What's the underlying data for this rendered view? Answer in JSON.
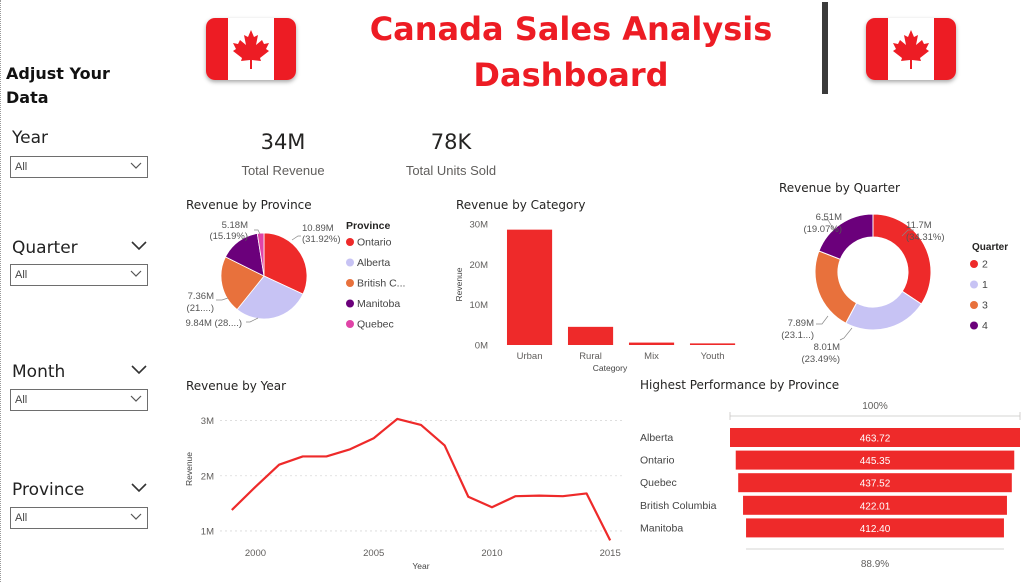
{
  "header": {
    "title": "Canada Sales Analysis Dashboard",
    "flag_colors": {
      "red": "#ed1c24",
      "white": "#ffffff"
    }
  },
  "sidebar": {
    "heading": "Adjust Your Data",
    "filters": [
      {
        "label": "Year",
        "value": "All"
      },
      {
        "label": "Quarter",
        "value": "All"
      },
      {
        "label": "Month",
        "value": "All"
      },
      {
        "label": "Province",
        "value": "All"
      }
    ]
  },
  "kpis": [
    {
      "value": "34M",
      "label": "Total Revenue"
    },
    {
      "value": "78K",
      "label": "Total Units Sold"
    }
  ],
  "colors": {
    "red": "#ee2a2a",
    "lavender": "#c7c3f4",
    "orange": "#e8713c",
    "purple": "#6b007b",
    "pink": "#e044a7"
  },
  "chart_data": [
    {
      "type": "pie",
      "title": "Revenue by Province",
      "legend_title": "Province",
      "legend_position": "right",
      "categories": [
        "Ontario",
        "Alberta",
        "British C...",
        "Manitoba",
        "Quebec"
      ],
      "values": [
        10.89,
        9.84,
        7.36,
        5.18,
        0.85
      ],
      "percent_labels": [
        "(31.92%)",
        "(28....)",
        "(21....)",
        "(15.19%)",
        ""
      ],
      "value_labels": [
        "10.89M",
        "9.84M",
        "7.36M",
        "5.18M",
        ""
      ]
    },
    {
      "type": "bar",
      "title": "Revenue by Category",
      "xlabel": "Category",
      "ylabel": "Revenue",
      "categories": [
        "Urban",
        "Rural",
        "Mix",
        "Youth"
      ],
      "values": [
        28.6,
        4.5,
        0.6,
        0.4
      ],
      "ylim": [
        0,
        30
      ],
      "yticks": [
        "0M",
        "10M",
        "20M",
        "30M"
      ]
    },
    {
      "type": "pie",
      "title": "Revenue by Quarter",
      "subtype": "donut",
      "legend_title": "Quarter",
      "legend_position": "right",
      "categories": [
        "2",
        "1",
        "3",
        "4"
      ],
      "values": [
        11.7,
        8.01,
        7.89,
        6.51
      ],
      "value_labels": [
        "11.7M",
        "8.01M",
        "7.89M",
        "6.51M"
      ],
      "percent_labels": [
        "(34.31%)",
        "(23.49%)",
        "(23.1...)",
        "(19.07%)"
      ]
    },
    {
      "type": "line",
      "title": "Revenue by Year",
      "xlabel": "Year",
      "ylabel": "Revenue",
      "x": [
        1999,
        2000,
        2001,
        2002,
        2003,
        2004,
        2005,
        2006,
        2007,
        2008,
        2009,
        2010,
        2011,
        2012,
        2013,
        2014,
        2015
      ],
      "y": [
        1.38,
        1.8,
        2.2,
        2.35,
        2.35,
        2.48,
        2.68,
        3.03,
        2.92,
        2.55,
        1.62,
        1.43,
        1.63,
        1.64,
        1.63,
        1.68,
        0.83
      ],
      "xlim": [
        1998.5,
        2015.5
      ],
      "ylim": [
        0.8,
        3.3
      ],
      "xticks": [
        "2000",
        "2005",
        "2010",
        "2015"
      ],
      "yticks": [
        "1M",
        "2M",
        "3M"
      ],
      "grid": true
    },
    {
      "type": "bar",
      "subtype": "funnel",
      "title": "Highest Performance by Province",
      "categories": [
        "Alberta",
        "Ontario",
        "Quebec",
        "British Columbia",
        "Manitoba"
      ],
      "values": [
        463.72,
        445.35,
        437.52,
        422.01,
        412.4
      ],
      "value_labels": [
        "463.72",
        "445.35",
        "437.52",
        "422.01",
        "412.40"
      ],
      "top_label": "100%",
      "bottom_label": "88.9%"
    }
  ]
}
